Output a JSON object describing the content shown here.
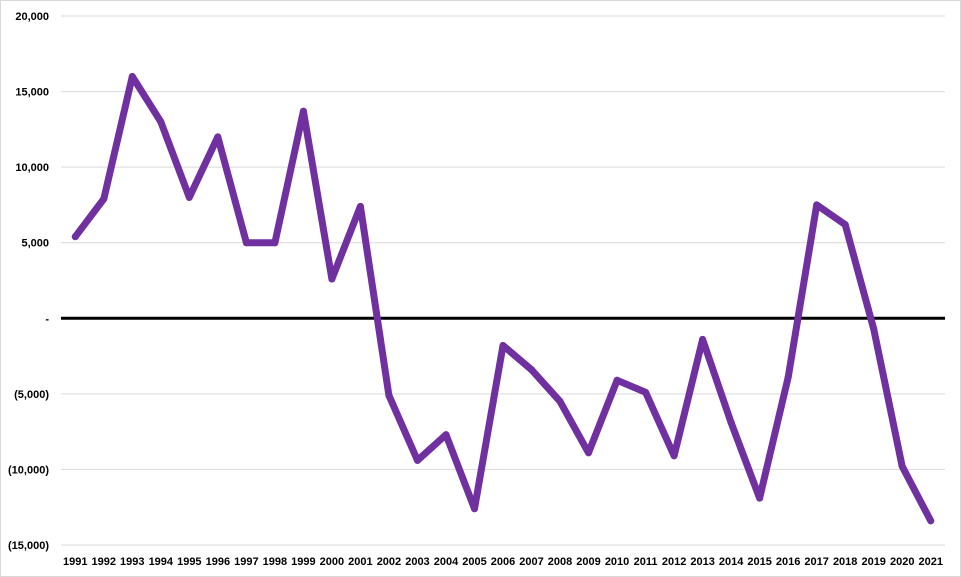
{
  "chart_data": {
    "type": "line",
    "title": "",
    "xlabel": "",
    "ylabel": "",
    "ylim": [
      -15000,
      20000
    ],
    "grid": true,
    "legend": "none",
    "yticks": [
      20000,
      15000,
      10000,
      5000,
      0,
      -5000,
      -10000,
      -15000
    ],
    "ytick_labels": [
      "20,000",
      "15,000",
      "10,000",
      "5,000",
      "-",
      "(5,000)",
      "(10,000)",
      "(15,000)"
    ],
    "categories": [
      "1991",
      "1992",
      "1993",
      "1994",
      "1995",
      "1996",
      "1997",
      "1998",
      "1999",
      "2000",
      "2001",
      "2002",
      "2003",
      "2004",
      "2005",
      "2006",
      "2007",
      "2008",
      "2009",
      "2010",
      "2011",
      "2012",
      "2013",
      "2014",
      "2015",
      "2016",
      "2017",
      "2018",
      "2019",
      "2020",
      "2021"
    ],
    "series": [
      {
        "color": "#7030a0",
        "values": [
          5400,
          7900,
          16000,
          13000,
          8000,
          12000,
          5000,
          5000,
          13700,
          2600,
          7400,
          -5100,
          -9400,
          -7700,
          -12600,
          -1800,
          -3400,
          -5500,
          -8900,
          -4100,
          -4900,
          -9100,
          -1400,
          -6900,
          -11900,
          -3900,
          7500,
          6200,
          -700,
          -9800,
          -13400
        ]
      }
    ],
    "zero_line_color": "#000000"
  }
}
